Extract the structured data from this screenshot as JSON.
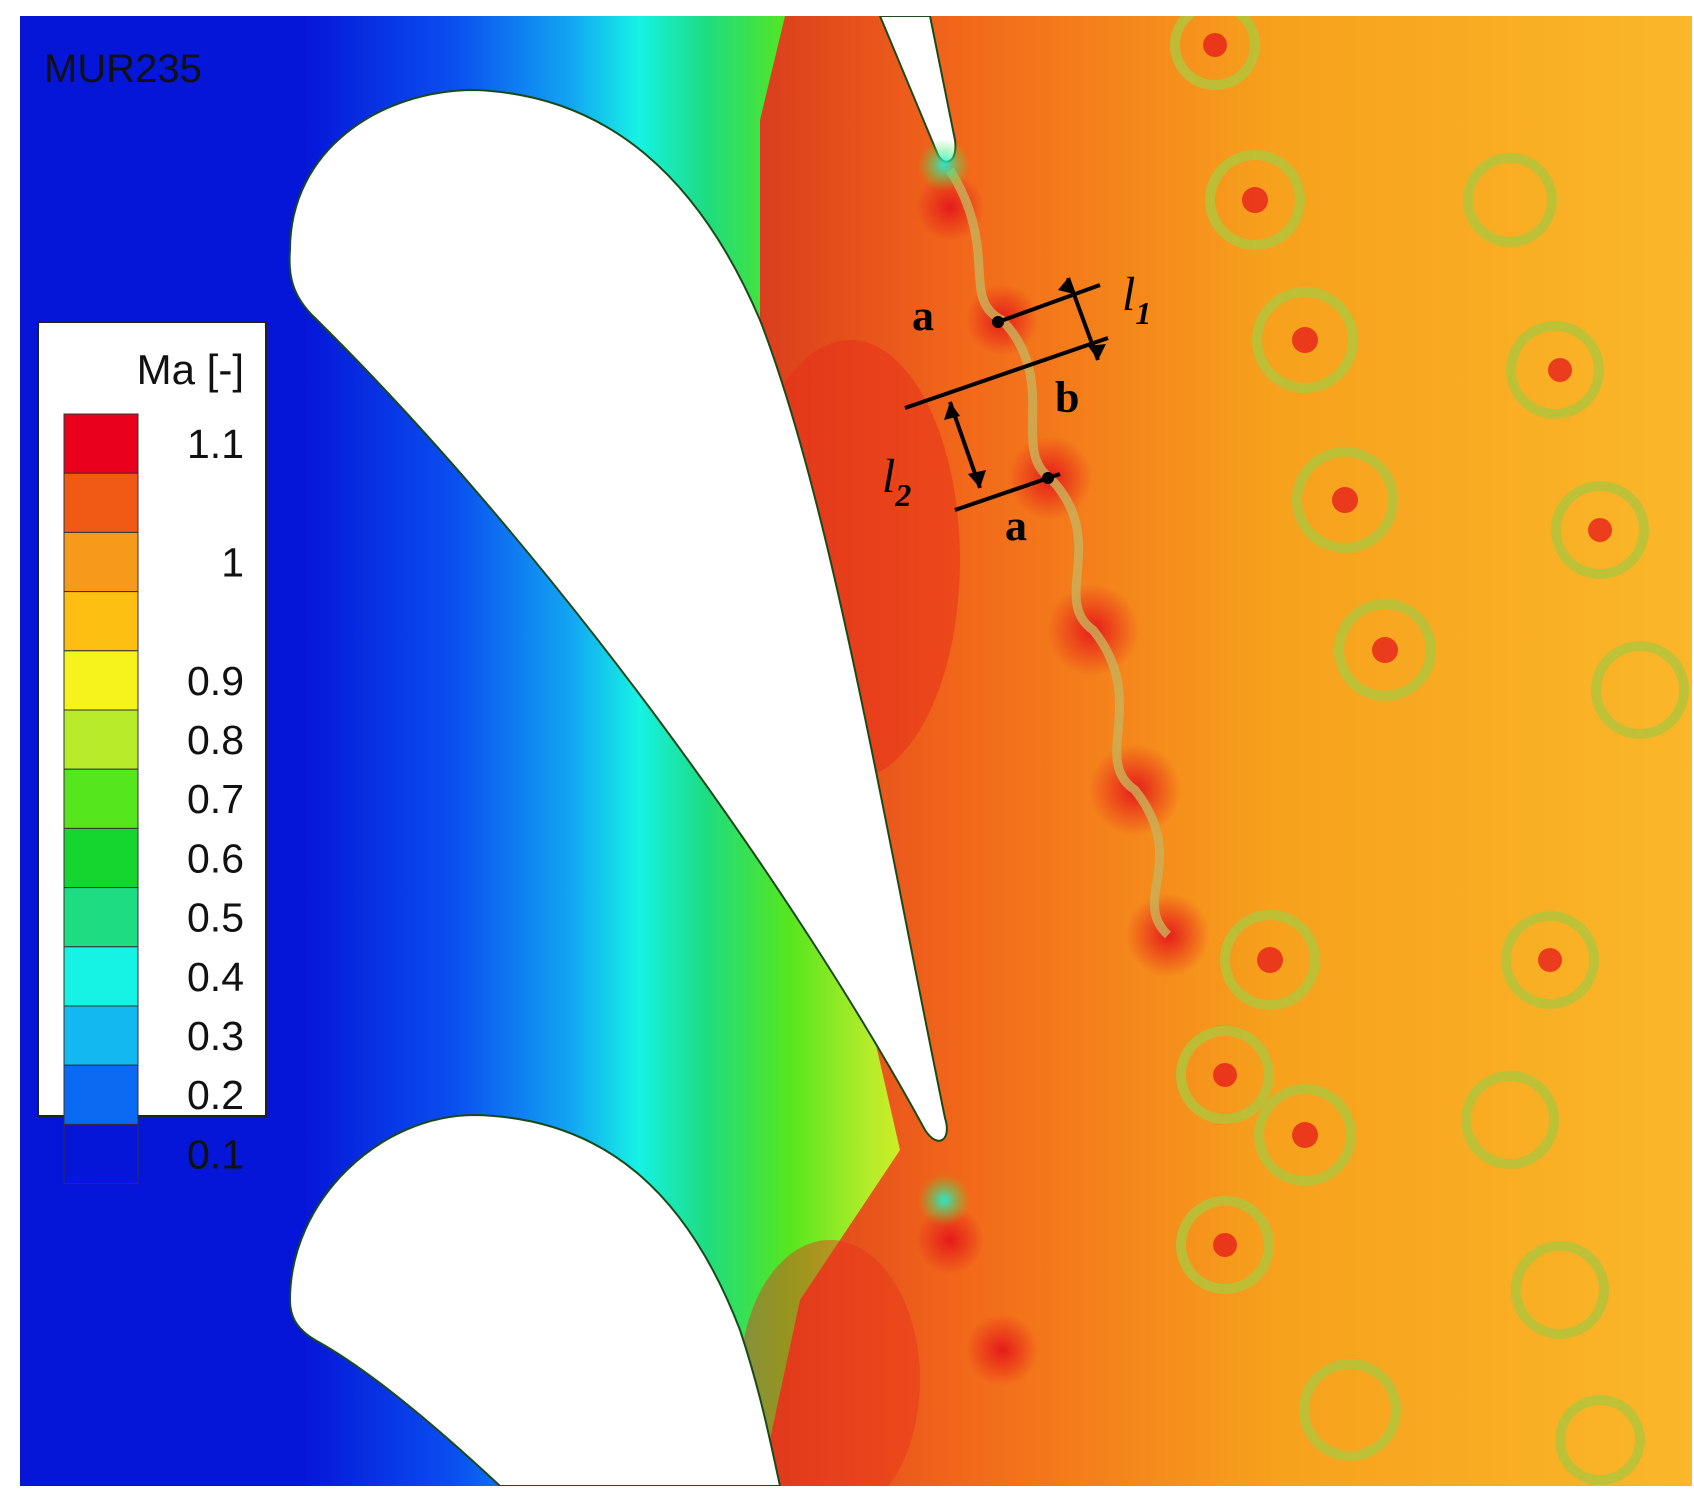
{
  "case_label": "MUR235",
  "legend": {
    "title": "Ma [-]",
    "levels": [
      {
        "label": "1.1",
        "color": "#e8001c"
      },
      {
        "label": "",
        "color": "#f05a14"
      },
      {
        "label": "1",
        "color": "#f79a1c"
      },
      {
        "label": "",
        "color": "#fcbf12"
      },
      {
        "label": "0.9",
        "color": "#f6f21b"
      },
      {
        "label": "0.8",
        "color": "#b8ec2a"
      },
      {
        "label": "0.7",
        "color": "#55e61e"
      },
      {
        "label": "0.6",
        "color": "#15d62f"
      },
      {
        "label": "0.5",
        "color": "#1ddc82"
      },
      {
        "label": "0.4",
        "color": "#16f2e4"
      },
      {
        "label": "0.3",
        "color": "#13b8f0"
      },
      {
        "label": "0.2",
        "color": "#0a6af2"
      },
      {
        "label": "0.1",
        "color": "#0616d8"
      }
    ],
    "tick_labels": [
      "1.1",
      "1",
      "0.9",
      "0.8",
      "0.7",
      "0.6",
      "0.5",
      "0.4",
      "0.3",
      "0.2",
      "0.1"
    ]
  },
  "annotations": {
    "vortex_a_upper": "a",
    "vortex_b": "b",
    "vortex_a_lower": "a",
    "spacing_1": {
      "symbol": "l",
      "subscript": "1"
    },
    "spacing_2": {
      "symbol": "l",
      "subscript": "2"
    }
  }
}
